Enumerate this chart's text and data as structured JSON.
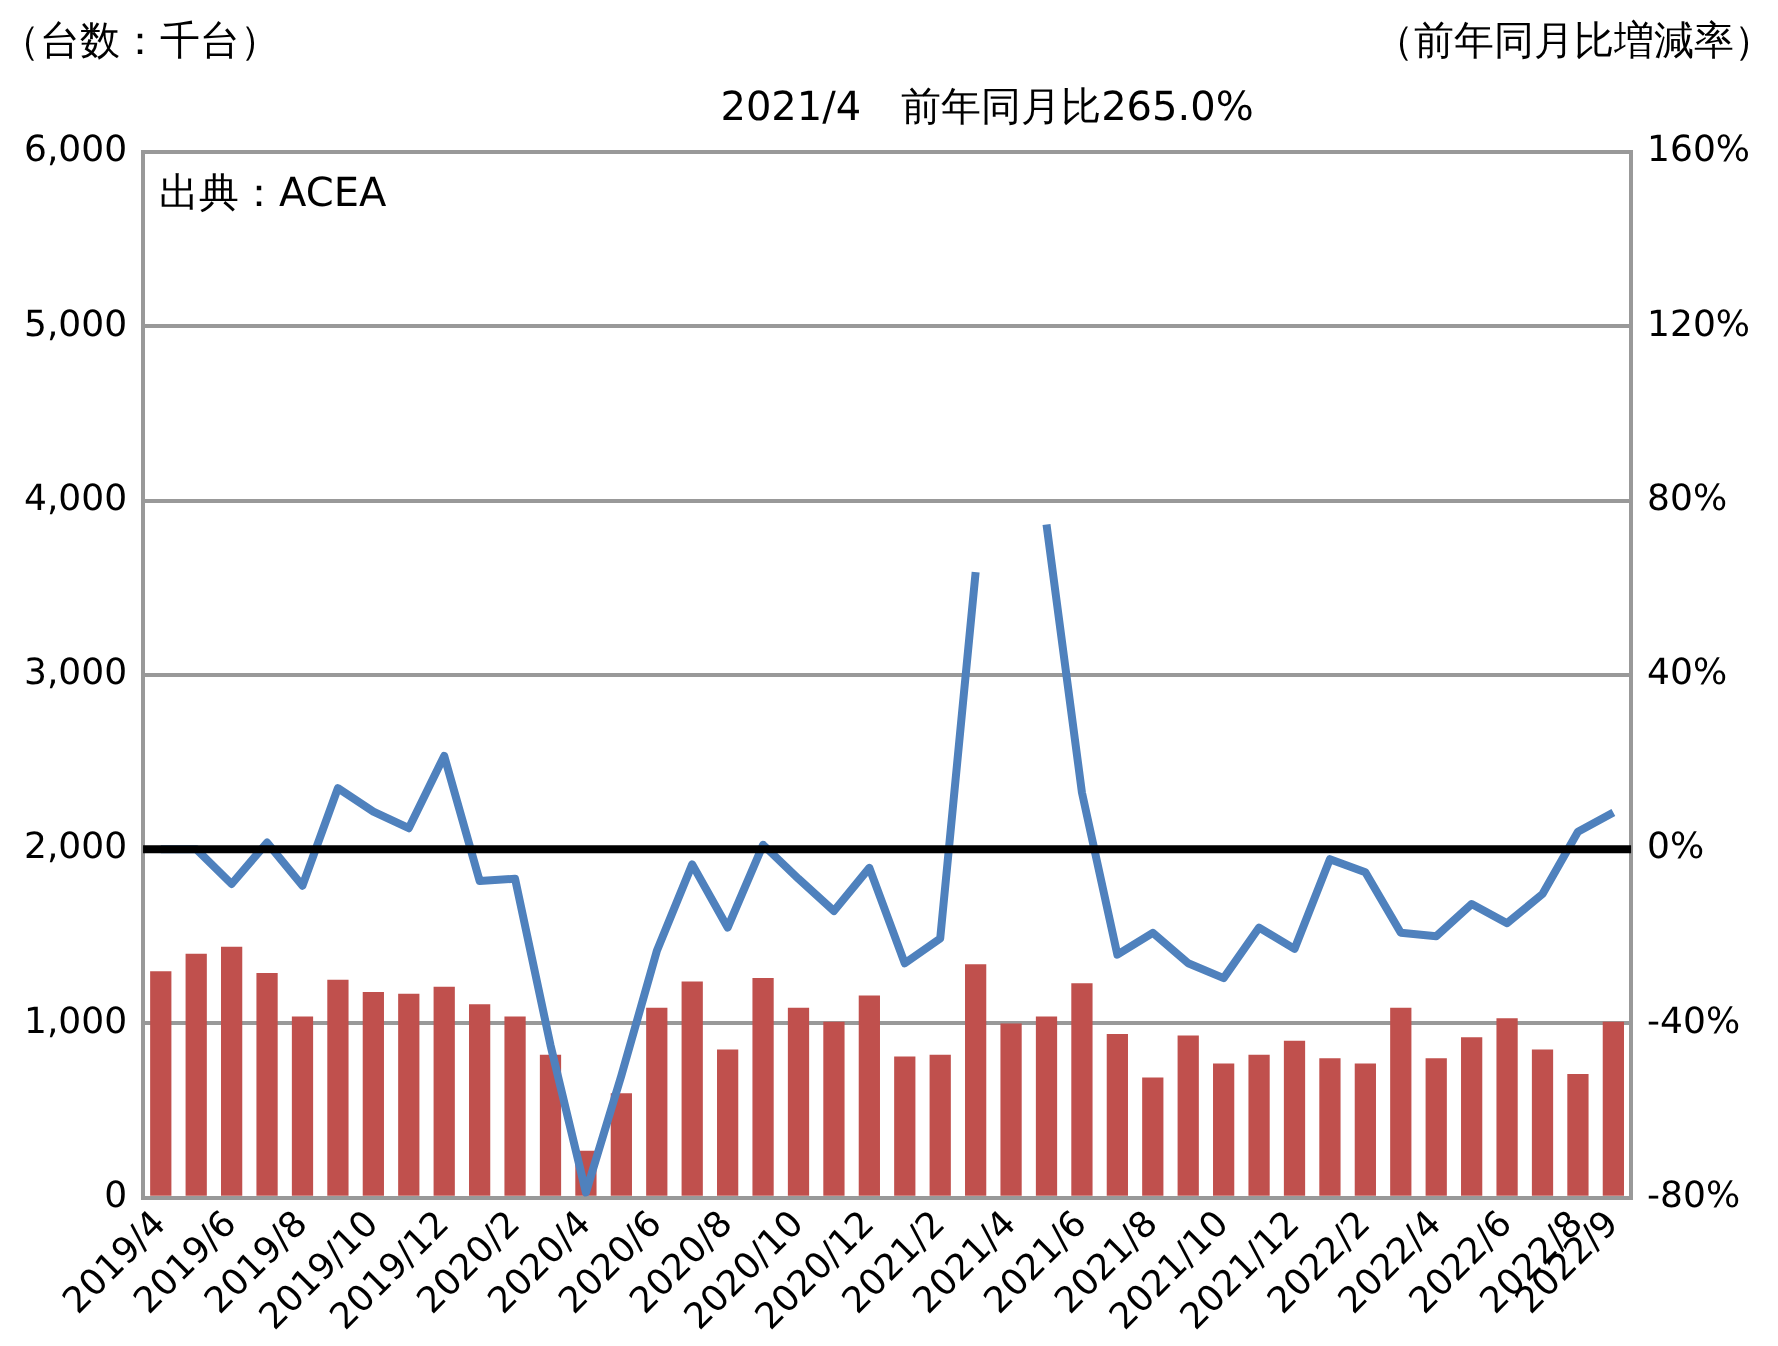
{
  "chart_data": {
    "type": "bar",
    "ylabel": "（台数：千台）",
    "y2label": "（前年同月比増減率）",
    "categories": [
      "2019/4",
      null,
      "2019/6",
      null,
      "2019/8",
      null,
      "2019/10",
      null,
      "2019/12",
      null,
      "2020/2",
      null,
      "2020/4",
      null,
      "2020/6",
      null,
      "2020/8",
      null,
      "2020/10",
      null,
      "2020/12",
      null,
      "2021/2",
      null,
      "2021/4",
      null,
      "2021/6",
      null,
      "2021/8",
      null,
      "2021/10",
      null,
      "2021/12",
      null,
      "2022/2",
      null,
      "2022/4",
      null,
      "2022/6",
      null,
      "2022/8",
      "2022/9"
    ],
    "series": [
      {
        "color": "#c0504d",
        "values": [
          1300,
          1400,
          1440,
          1290,
          1040,
          1250,
          1180,
          1170,
          1210,
          1110,
          1040,
          820,
          270,
          600,
          1090,
          1240,
          850,
          1260,
          1090,
          1010,
          1160,
          810,
          820,
          1340,
          1000,
          1040,
          1230,
          940,
          690,
          930,
          770,
          820,
          900,
          800,
          770,
          1090,
          800,
          920,
          1030,
          850,
          710,
          1010
        ]
      },
      {
        "type": "line",
        "axis": "y2",
        "color": "#4f81bd",
        "values": [
          0,
          0,
          -8,
          1.5,
          -8.4,
          14,
          8.6,
          4.8,
          21.4,
          -7.3,
          -6.8,
          -45,
          -78.8,
          -52,
          -23.4,
          -3.5,
          -18,
          1,
          -6.8,
          -14.2,
          -4.3,
          -26.2,
          -20.5,
          63.6,
          null,
          74.5,
          13,
          -24.2,
          -19.2,
          -26.2,
          -29.6,
          -18,
          -22.9,
          -2.3,
          -5.3,
          -19.2,
          -20,
          -12.6,
          -17,
          -10.3,
          4,
          8.4
        ]
      }
    ],
    "ylim": [
      0,
      6000
    ],
    "yticks": [
      0,
      {
        "value": 1000,
        "label": "1,000"
      },
      {
        "value": 2000,
        "label": "2,000"
      },
      {
        "value": 3000,
        "label": "3,000"
      },
      {
        "value": 4000,
        "label": "4,000"
      },
      {
        "value": 5000,
        "label": "5,000"
      },
      {
        "value": 6000,
        "label": "6,000"
      }
    ],
    "y2lim": [
      -80,
      160
    ],
    "y2ticks": [
      {
        "value": -80,
        "label": "-80%"
      },
      {
        "value": -40,
        "label": "-40%"
      },
      {
        "value": 0,
        "label": "0%"
      },
      {
        "value": 40,
        "label": "40%"
      },
      {
        "value": 80,
        "label": "80%"
      },
      {
        "value": 120,
        "label": "120%"
      },
      {
        "value": 160,
        "label": "160%"
      }
    ],
    "grid": "y",
    "ref_lines": [
      {
        "axis": "y2",
        "value": 0,
        "color": "#000000"
      }
    ],
    "annotations": [
      "2021/4　前年同月比265.0%",
      "出典：ACEA"
    ]
  }
}
